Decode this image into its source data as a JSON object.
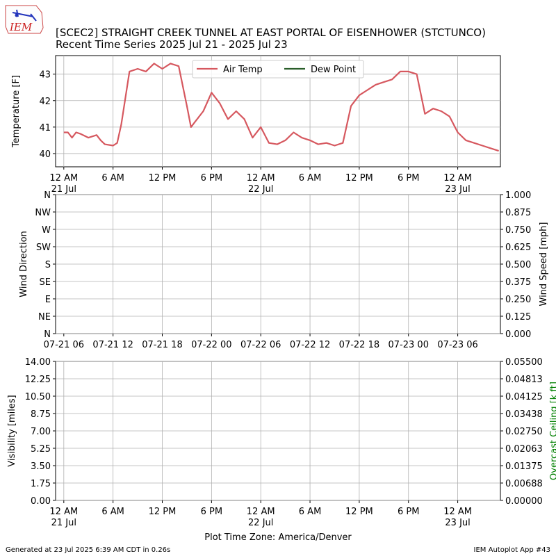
{
  "logo": {
    "text": "IEM"
  },
  "title": {
    "line1": "[SCEC2] STRAIGHT CREEK TUNNEL AT EAST PORTAL OF EISENHOWER (STCTUNCO)",
    "line2": "Recent Time Series 2025 Jul 21 - 2025 Jul 23"
  },
  "footer": {
    "generated": "Generated at 23 Jul 2025 6:39 AM CDT in 0.26s",
    "app": "IEM Autoplot App #43"
  },
  "time_ticks": {
    "labels": [
      "12 AM",
      "6 AM",
      "12 PM",
      "6 PM",
      "12 AM",
      "6 AM",
      "12 PM",
      "6 PM",
      "12 AM"
    ],
    "dates": [
      "21 Jul",
      "",
      "",
      "",
      "22 Jul",
      "",
      "",
      "",
      "23 Jul"
    ]
  },
  "colors": {
    "air_temp": "#d6585f",
    "dew_point": "#2a5e2a",
    "ceiling_axis": "#008000"
  },
  "chart_data": [
    {
      "type": "line",
      "ylabel": "Temperature [F]",
      "ylim": [
        39.5,
        43.7
      ],
      "yticks": [
        40,
        41,
        42,
        43
      ],
      "xlim_hours": [
        -1,
        53.2
      ],
      "legend": {
        "position": "top-center",
        "entries": [
          "Air Temp",
          "Dew Point"
        ]
      },
      "grid": true,
      "series": [
        {
          "name": "Air Temp",
          "x_hours": [
            0,
            0.5,
            1,
            1.5,
            2,
            3,
            4,
            4.5,
            5,
            6,
            6.5,
            7,
            8,
            9,
            10,
            11,
            12,
            13,
            14,
            15,
            15.5,
            16,
            17,
            18,
            19,
            20,
            21,
            22,
            23,
            24,
            25,
            26,
            27,
            28,
            29,
            30,
            31,
            32,
            33,
            34,
            35,
            36,
            37,
            38,
            39,
            40,
            41,
            42,
            43,
            44,
            45,
            46,
            47,
            48,
            49,
            50,
            51,
            52,
            53
          ],
          "values": [
            40.8,
            40.8,
            40.6,
            40.8,
            40.75,
            40.6,
            40.7,
            40.5,
            40.35,
            40.3,
            40.4,
            41.1,
            43.1,
            43.2,
            43.1,
            43.4,
            43.2,
            43.4,
            43.3,
            41.8,
            41.0,
            41.2,
            41.6,
            42.3,
            41.9,
            41.3,
            41.6,
            41.3,
            40.6,
            41.0,
            40.4,
            40.35,
            40.5,
            40.8,
            40.6,
            40.5,
            40.35,
            40.4,
            40.3,
            40.4,
            41.8,
            42.2,
            42.4,
            42.6,
            42.7,
            42.8,
            43.1,
            43.1,
            43.0,
            41.5,
            41.7,
            41.6,
            41.4,
            40.8,
            40.5,
            40.4,
            40.3,
            40.2,
            40.1
          ],
          "values_tail_note": ""
        },
        {
          "name": "Dew Point",
          "x_hours": [],
          "values": []
        }
      ]
    },
    {
      "type": "line",
      "ylabel": "Wind Direction",
      "y2label": "Wind Speed [mph]",
      "yticklabels": [
        "N",
        "NE",
        "E",
        "SE",
        "S",
        "SW",
        "W",
        "NW",
        "N"
      ],
      "y2ticklabels": [
        "0.000",
        "0.125",
        "0.250",
        "0.375",
        "0.500",
        "0.625",
        "0.750",
        "0.875",
        "1.000"
      ],
      "xticklabels": [
        "07-21 06",
        "07-21 12",
        "07-21 18",
        "07-22 00",
        "07-22 06",
        "07-22 12",
        "07-22 18",
        "07-23 00",
        "07-23 06"
      ],
      "grid": true,
      "series": []
    },
    {
      "type": "line",
      "ylabel": "Visibility [miles]",
      "y2label": "Overcast Ceiling [k ft]",
      "yticklabels": [
        "0.00",
        "1.75",
        "3.50",
        "5.25",
        "7.00",
        "8.75",
        "10.50",
        "12.25",
        "14.00"
      ],
      "y2ticklabels": [
        "0.00000",
        "0.00688",
        "0.01375",
        "0.02063",
        "0.02750",
        "0.03438",
        "0.04125",
        "0.04813",
        "0.05500"
      ],
      "xlabel": "Plot Time Zone: America/Denver",
      "grid": true,
      "series": []
    }
  ]
}
